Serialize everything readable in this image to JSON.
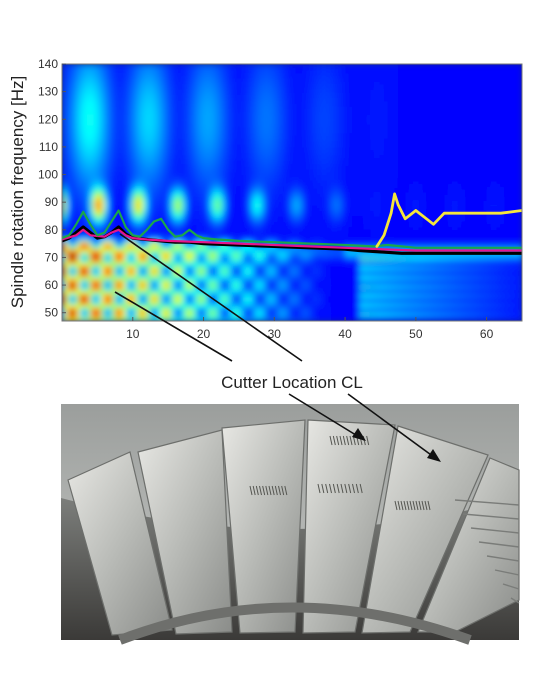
{
  "chart_data": {
    "type": "heatmap",
    "title": "",
    "xlabel": "Cutter Location CL",
    "ylabel": "Spindle rotation frequency [Hz]",
    "xlim": [
      0,
      65
    ],
    "ylim": [
      47,
      140
    ],
    "xticks": [
      10,
      20,
      30,
      40,
      50,
      60
    ],
    "yticks": [
      50,
      60,
      70,
      80,
      90,
      100,
      110,
      120,
      130,
      140
    ],
    "colormap": "jet",
    "grid": false,
    "legend": "none",
    "series": [
      {
        "color": "#000000",
        "x": [
          0,
          1,
          2,
          3,
          4,
          5,
          6,
          7,
          8,
          9,
          10,
          12,
          14,
          16,
          18,
          20,
          25,
          30,
          35,
          40,
          42,
          45,
          48,
          50,
          55,
          60,
          65
        ],
        "y": [
          76,
          77,
          79,
          81,
          79,
          77,
          77.5,
          79,
          81,
          78.5,
          77,
          76.5,
          76,
          75.5,
          75.5,
          75,
          74.5,
          74,
          73.5,
          73,
          72.5,
          72,
          71.5,
          71.5,
          71.5,
          71.5,
          71.5
        ]
      },
      {
        "color": "#e6148c",
        "x": [
          0,
          2,
          3,
          4,
          6,
          7,
          8,
          9,
          10,
          12,
          15,
          20,
          25,
          30,
          35,
          40,
          45,
          50,
          55,
          60,
          65
        ],
        "y": [
          76.5,
          78,
          80,
          78,
          77.5,
          79,
          80,
          78,
          77,
          76.5,
          76,
          75.5,
          75,
          74.5,
          74,
          73.5,
          73,
          72.5,
          72.5,
          72.5,
          72.5
        ]
      },
      {
        "color": "#1aa64a",
        "x": [
          0,
          1,
          2,
          3,
          4,
          5,
          6,
          7,
          8,
          9,
          10,
          11,
          12,
          13,
          14,
          15,
          16,
          17,
          18,
          19,
          20,
          22,
          25,
          30,
          35,
          40,
          44,
          46,
          48,
          50,
          55,
          60,
          65
        ],
        "y": [
          77,
          78,
          82,
          86.5,
          82,
          78,
          79,
          83,
          87,
          81,
          78,
          77.5,
          80,
          83,
          84,
          80,
          77.5,
          78,
          80,
          78,
          77,
          76.5,
          76,
          75.5,
          75,
          74.5,
          74,
          74.5,
          74,
          73.5,
          73.5,
          73.5,
          73.5
        ]
      },
      {
        "color": "#f5e63c",
        "x": [
          44.5,
          45.5,
          46.5,
          47,
          47.5,
          48.5,
          50,
          51.5,
          52.5,
          54,
          58,
          62,
          65
        ],
        "y": [
          74,
          78,
          86,
          93,
          89,
          84,
          87,
          84,
          82,
          86,
          86,
          86,
          87
        ]
      }
    ]
  },
  "photo_caption": ""
}
